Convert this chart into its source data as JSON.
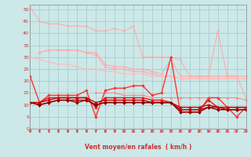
{
  "x": [
    0,
    1,
    2,
    3,
    4,
    5,
    6,
    7,
    8,
    9,
    10,
    11,
    12,
    13,
    14,
    15,
    16,
    17,
    18,
    19,
    20,
    21,
    22,
    23
  ],
  "series": [
    {
      "name": "max_rafales",
      "color": "#ffaaaa",
      "linewidth": 0.8,
      "marker": "D",
      "markersize": 1.8,
      "values": [
        51,
        45,
        44,
        44,
        43,
        43,
        43,
        41,
        41,
        42,
        41,
        43,
        30,
        30,
        30,
        30,
        29,
        22,
        22,
        22,
        41,
        22,
        22,
        13
      ]
    },
    {
      "name": "p90_rafales",
      "color": "#ffaaaa",
      "linewidth": 0.8,
      "marker": "D",
      "markersize": 1.8,
      "values": [
        null,
        null,
        null,
        null,
        null,
        null,
        null,
        null,
        null,
        null,
        null,
        null,
        null,
        null,
        null,
        null,
        null,
        null,
        null,
        null,
        null,
        null,
        null,
        null
      ]
    },
    {
      "name": "upper_band",
      "color": "#ffaaaa",
      "linewidth": 0.8,
      "marker": "D",
      "markersize": 1.8,
      "values": [
        null,
        32,
        33,
        33,
        33,
        33,
        32,
        32,
        27,
        26,
        26,
        25,
        25,
        24,
        23,
        29,
        22,
        22,
        22,
        22,
        22,
        22,
        22,
        22
      ]
    },
    {
      "name": "lower_band",
      "color": "#ffaaaa",
      "linewidth": 0.8,
      "marker": "D",
      "markersize": 1.8,
      "values": [
        null,
        32,
        33,
        33,
        33,
        33,
        32,
        31,
        26,
        25,
        25,
        24,
        24,
        23,
        22,
        22,
        21,
        21,
        21,
        21,
        21,
        21,
        21,
        21
      ]
    },
    {
      "name": "diagonal_light",
      "color": "#ffbbbb",
      "linewidth": 0.8,
      "marker": "D",
      "markersize": 1.8,
      "values": [
        30,
        29,
        28,
        27,
        27,
        26,
        25,
        25,
        24,
        24,
        23,
        23,
        23,
        22,
        22,
        22,
        21,
        21,
        21,
        21,
        21,
        21,
        21,
        21
      ]
    },
    {
      "name": "series_pink_medium",
      "color": "#ff8888",
      "linewidth": 0.8,
      "marker": "D",
      "markersize": 1.8,
      "values": [
        null,
        null,
        null,
        null,
        null,
        null,
        null,
        15,
        15,
        15,
        14,
        14,
        14,
        13,
        13,
        13,
        13,
        13,
        13,
        13,
        13,
        13,
        13,
        12
      ]
    },
    {
      "name": "series_bright_red",
      "color": "#ff3333",
      "linewidth": 1.0,
      "marker": "D",
      "markersize": 2.2,
      "values": [
        22,
        11,
        14,
        14,
        14,
        14,
        16,
        5,
        16,
        17,
        17,
        18,
        18,
        14,
        15,
        30,
        7,
        7,
        7,
        13,
        13,
        9,
        5,
        9
      ]
    },
    {
      "name": "series_red2",
      "color": "#ee1111",
      "linewidth": 1.0,
      "marker": "D",
      "markersize": 2.2,
      "values": [
        11,
        11,
        13,
        13,
        13,
        13,
        13,
        9,
        13,
        13,
        13,
        13,
        13,
        12,
        12,
        11,
        8,
        8,
        8,
        12,
        9,
        9,
        9,
        9
      ]
    },
    {
      "name": "series_red3",
      "color": "#cc0000",
      "linewidth": 1.0,
      "marker": "D",
      "markersize": 2.2,
      "values": [
        11,
        11,
        12,
        13,
        13,
        13,
        13,
        11,
        12,
        12,
        12,
        12,
        12,
        11,
        11,
        11,
        9,
        9,
        9,
        10,
        9,
        9,
        9,
        9
      ]
    },
    {
      "name": "series_red4",
      "color": "#bb0000",
      "linewidth": 1.0,
      "marker": "D",
      "markersize": 2.2,
      "values": [
        11,
        10,
        11,
        12,
        12,
        12,
        12,
        10,
        11,
        11,
        11,
        11,
        11,
        11,
        11,
        11,
        8,
        8,
        8,
        9,
        9,
        8,
        8,
        8
      ]
    },
    {
      "name": "series_darkred",
      "color": "#880000",
      "linewidth": 1.0,
      "marker": "D",
      "markersize": 2.2,
      "values": [
        11,
        10,
        11,
        12,
        12,
        11,
        12,
        10,
        11,
        11,
        11,
        11,
        11,
        11,
        11,
        11,
        7,
        7,
        7,
        9,
        8,
        8,
        8,
        8
      ]
    }
  ],
  "xlim": [
    0,
    23
  ],
  "ylim": [
    0,
    52
  ],
  "yticks": [
    0,
    5,
    10,
    15,
    20,
    25,
    30,
    35,
    40,
    45,
    50
  ],
  "xticks": [
    0,
    1,
    2,
    3,
    4,
    5,
    6,
    7,
    8,
    9,
    10,
    11,
    12,
    13,
    14,
    15,
    16,
    17,
    18,
    19,
    20,
    21,
    22,
    23
  ],
  "xlabel": "Vent moyen/en rafales  ( km/h )",
  "bgcolor": "#cce8e8",
  "grid_color": "#aacccc",
  "ytick_color": "#cc3333",
  "xtick_color": "#cc3333",
  "arrow_color": "#cc3333",
  "xlabel_color": "#cc3333",
  "spine_color": "#888888"
}
